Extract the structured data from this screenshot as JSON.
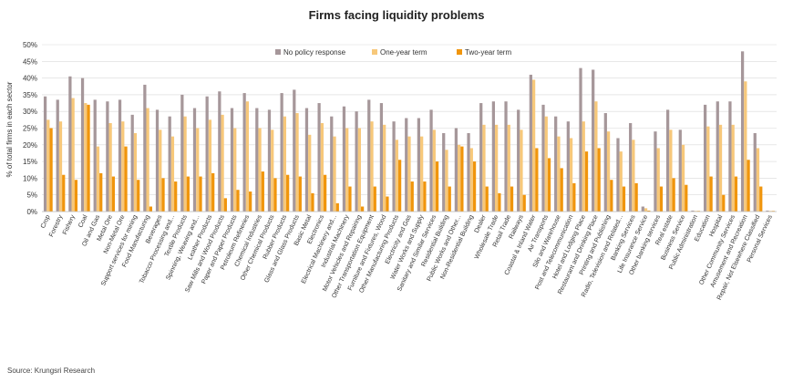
{
  "chart_data": {
    "type": "bar",
    "title": "Firms facing liquidity problems",
    "ylabel": "% of total firms in each sector",
    "xlabel": "",
    "ylim": [
      0,
      50
    ],
    "yticks": [
      "0%",
      "5%",
      "10%",
      "15%",
      "20%",
      "25%",
      "30%",
      "35%",
      "40%",
      "45%",
      "50%"
    ],
    "grid": true,
    "legend_position": "top",
    "categories": [
      "Crop",
      "Forestry",
      "Fishery",
      "Coal",
      "Oil and Gas",
      "Metal Ore",
      "Non-Metal Ore",
      "Support services for mining",
      "Food Manufacturing",
      "Beverages",
      "Tobacco Processing and...",
      "Textile Products",
      "Spinning, Weaving and...",
      "Leather Products",
      "Saw Mills and Wood Products",
      "Paper and Paper Products",
      "Petroleum Refineries",
      "Chemical Industries",
      "Other Chemical Products",
      "Rubber Products",
      "Glass and Glass Products",
      "Basic Metal",
      "Electronics",
      "Electrical Machinery and...",
      "Industrial Machinery",
      "Motor Vehicles and Repairing",
      "Other Transportation Equipment",
      "Furniture and Fixtures, Wood",
      "Other Manufacturing Products",
      "Electricity and Gas",
      "Water Works and Supply",
      "Sanitary and Similar Services",
      "Residential Building",
      "Public Works and Other...",
      "Non-Residential Building",
      "Dealer",
      "Wholesale Trade",
      "Retail Trade",
      "Railways",
      "Coastal & Inland Water",
      "Air Transports",
      "Silo and Warehouse",
      "Post and Telecommunication",
      "Hotel and Lodging Place",
      "Restaurant and Drinking Place",
      "Printing and Publishing",
      "Radio, Television and Related...",
      "Banking Services",
      "Life Insurance Service",
      "Other banking services",
      "Real estate",
      "Business Service",
      "Public Administration",
      "Education",
      "Hospital",
      "Other Community Services",
      "Amusement and Recreation",
      "Repair, Not Elsewhere Classified",
      "Personal Services"
    ],
    "series": [
      {
        "name": "No policy response",
        "color": "#a6979a",
        "values": [
          34.5,
          33.5,
          40.5,
          40,
          33.5,
          33,
          33.5,
          29,
          38,
          30.5,
          28.5,
          35,
          31,
          34.5,
          36,
          31,
          35.5,
          31,
          30.5,
          35.5,
          36.5,
          31,
          32.5,
          28.5,
          31.5,
          30,
          33.5,
          32.5,
          27,
          28,
          28,
          30.5,
          23.5,
          25,
          23.5,
          32.5,
          33,
          33,
          30.5,
          41,
          32,
          28.5,
          27,
          43,
          42.5,
          29.5,
          22,
          26.5,
          1.5,
          24,
          30.5,
          24.5,
          0.3,
          32,
          33,
          33,
          48,
          23.5,
          0.3
        ]
      },
      {
        "name": "One-year term",
        "color": "#f7c87a",
        "values": [
          27.5,
          27,
          34,
          32.5,
          19.5,
          26.5,
          27,
          23.5,
          31,
          24.5,
          22.5,
          28.5,
          25,
          27.5,
          29,
          25,
          33,
          25,
          24.5,
          28.5,
          29.5,
          23,
          26.5,
          22.5,
          25,
          25,
          27,
          26,
          21.5,
          22.5,
          22.5,
          24.5,
          18.5,
          20,
          19,
          26,
          26,
          26,
          24.5,
          39.5,
          28.5,
          22.5,
          22,
          27,
          33,
          24,
          18,
          21.5,
          1,
          19,
          24.5,
          20,
          0.2,
          25.5,
          26,
          26,
          39,
          19,
          0.2
        ]
      },
      {
        "name": "Two-year term",
        "color": "#f0950c",
        "values": [
          25,
          11,
          9.5,
          32,
          11.5,
          10.5,
          19.5,
          9.5,
          1.5,
          10,
          9,
          10.5,
          10.5,
          11.5,
          4,
          6.5,
          6,
          12,
          10,
          11,
          10.5,
          5.5,
          11,
          2.5,
          7.5,
          1.5,
          7.5,
          4.5,
          15.5,
          9,
          9,
          15,
          7.5,
          19.5,
          15,
          7.5,
          5.5,
          7.5,
          5,
          19,
          16,
          13,
          8.5,
          18,
          19,
          9.5,
          7.5,
          8.5,
          0.3,
          7.5,
          10,
          8,
          0.2,
          10.5,
          5,
          10.5,
          15.5,
          7.5,
          0.2
        ]
      }
    ]
  },
  "source_text": "Source: Krungsri Research"
}
